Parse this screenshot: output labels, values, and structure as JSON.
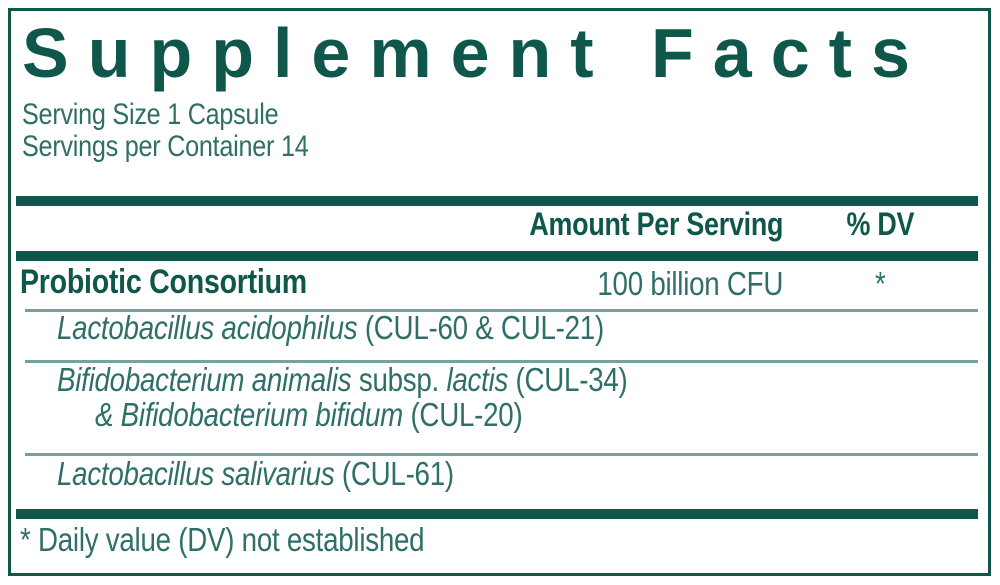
{
  "colors": {
    "dark": "#0e574a",
    "body": "#2f6f68",
    "rule": "#74a39d",
    "bg": "#ffffff"
  },
  "title": "Supplement Facts",
  "serving": {
    "size": "Serving Size 1 Capsule",
    "per_container": "Servings per Container 14"
  },
  "columns": {
    "amount": "Amount Per Serving",
    "dv": "% DV"
  },
  "main_row": {
    "name": "Probiotic Consortium",
    "amount": "100 billion CFU",
    "dv": "*"
  },
  "ingredients": [
    [
      [
        {
          "t": "Lactobacillus acidophilus",
          "i": true
        },
        {
          "t": " (CUL-60 & CUL-21)",
          "i": false
        }
      ]
    ],
    [
      [
        {
          "t": "Bifidobacterium animalis",
          "i": true
        },
        {
          "t": " subsp. ",
          "i": false
        },
        {
          "t": "lactis",
          "i": true
        },
        {
          "t": " (CUL-34)",
          "i": false
        }
      ],
      [
        {
          "t": "& Bifidobacterium bifidum",
          "i": true
        },
        {
          "t": " (CUL-20)",
          "i": false
        }
      ]
    ],
    [
      [
        {
          "t": "Lactobacillus salivarius",
          "i": true
        },
        {
          "t": " (CUL-61)",
          "i": false
        }
      ]
    ]
  ],
  "footnote": "* Daily value (DV) not established"
}
